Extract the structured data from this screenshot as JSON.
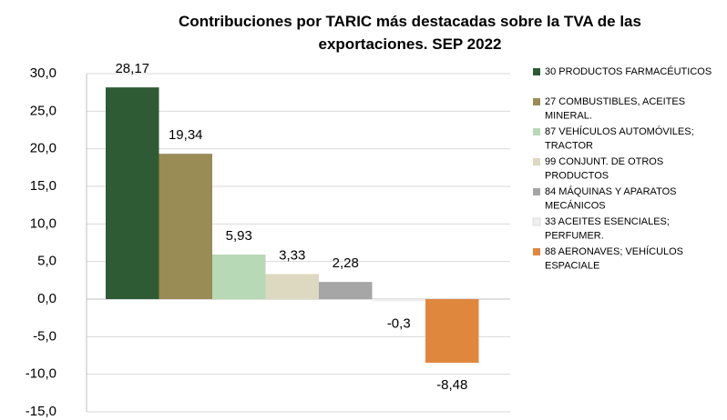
{
  "chart_data": {
    "type": "bar",
    "title": "Contribuciones por TARIC más destacadas sobre la TVA de las exportaciones. SEP 2022",
    "categories": [
      null
    ],
    "series": [
      {
        "name": "30 PRODUCTOS FARMACÉUTICOS",
        "color": "#2e5a34",
        "values": [
          28.17
        ],
        "value_labels": [
          "28,17"
        ]
      },
      {
        "name": "27 COMBUSTIBLES, ACEITES MINERAL.",
        "color": "#998c55",
        "values": [
          19.34
        ],
        "value_labels": [
          "19,34"
        ]
      },
      {
        "name": "87 VEHÍCULOS AUTOMÓVILES; TRACTOR",
        "color": "#b7d9b5",
        "values": [
          5.93
        ],
        "value_labels": [
          "5,93"
        ]
      },
      {
        "name": "99 CONJUNT. DE OTROS PRODUCTOS",
        "color": "#ddd8c0",
        "values": [
          3.33
        ],
        "value_labels": [
          "3,33"
        ]
      },
      {
        "name": "84 MÁQUINAS Y APARATOS MECÁNICOS",
        "color": "#a6a6a6",
        "values": [
          2.28
        ],
        "value_labels": [
          "2,28"
        ]
      },
      {
        "name": "33 ACEITES ESENCIALES; PERFUMER.",
        "color": "#efefef",
        "values": [
          -0.3
        ],
        "value_labels": [
          "-0,3"
        ]
      },
      {
        "name": "88 AERONAVES; VEHÍCULOS ESPACIALE",
        "color": "#e0873e",
        "values": [
          -8.48
        ],
        "value_labels": [
          "-8,48"
        ]
      }
    ],
    "ylim": [
      -15,
      30
    ],
    "yticks": [
      {
        "value": 30,
        "label": "30,0"
      },
      {
        "value": 25,
        "label": "25,0"
      },
      {
        "value": 20,
        "label": "20,0"
      },
      {
        "value": 15,
        "label": "15,0"
      },
      {
        "value": 10,
        "label": "10,0"
      },
      {
        "value": 5,
        "label": "5,0"
      },
      {
        "value": 0,
        "label": "0,0"
      },
      {
        "value": -5,
        "label": "-5,0"
      },
      {
        "value": -10,
        "label": "-10,0"
      },
      {
        "value": -15,
        "label": "-15,0"
      }
    ],
    "grid": true,
    "legend": "right"
  }
}
